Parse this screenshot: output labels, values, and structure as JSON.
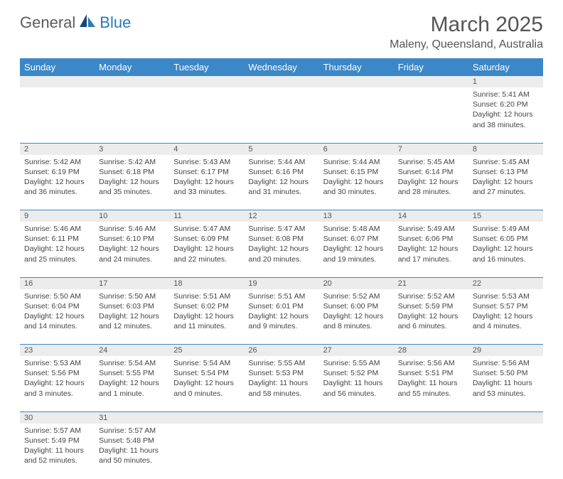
{
  "logo": {
    "part1": "General",
    "part2": "Blue"
  },
  "title": "March 2025",
  "location": "Maleny, Queensland, Australia",
  "colors": {
    "header_bg": "#3b87c8",
    "header_text": "#ffffff",
    "daynum_bg": "#ececec",
    "row_border": "#3b87c8",
    "text": "#444444",
    "title_text": "#555555",
    "logo_gray": "#5a5a5a",
    "logo_blue": "#2a7ab8"
  },
  "weekdays": [
    "Sunday",
    "Monday",
    "Tuesday",
    "Wednesday",
    "Thursday",
    "Friday",
    "Saturday"
  ],
  "weeks": [
    [
      null,
      null,
      null,
      null,
      null,
      null,
      {
        "n": "1",
        "sr": "5:41 AM",
        "ss": "6:20 PM",
        "dl": "12 hours and 38 minutes."
      }
    ],
    [
      {
        "n": "2",
        "sr": "5:42 AM",
        "ss": "6:19 PM",
        "dl": "12 hours and 36 minutes."
      },
      {
        "n": "3",
        "sr": "5:42 AM",
        "ss": "6:18 PM",
        "dl": "12 hours and 35 minutes."
      },
      {
        "n": "4",
        "sr": "5:43 AM",
        "ss": "6:17 PM",
        "dl": "12 hours and 33 minutes."
      },
      {
        "n": "5",
        "sr": "5:44 AM",
        "ss": "6:16 PM",
        "dl": "12 hours and 31 minutes."
      },
      {
        "n": "6",
        "sr": "5:44 AM",
        "ss": "6:15 PM",
        "dl": "12 hours and 30 minutes."
      },
      {
        "n": "7",
        "sr": "5:45 AM",
        "ss": "6:14 PM",
        "dl": "12 hours and 28 minutes."
      },
      {
        "n": "8",
        "sr": "5:45 AM",
        "ss": "6:13 PM",
        "dl": "12 hours and 27 minutes."
      }
    ],
    [
      {
        "n": "9",
        "sr": "5:46 AM",
        "ss": "6:11 PM",
        "dl": "12 hours and 25 minutes."
      },
      {
        "n": "10",
        "sr": "5:46 AM",
        "ss": "6:10 PM",
        "dl": "12 hours and 24 minutes."
      },
      {
        "n": "11",
        "sr": "5:47 AM",
        "ss": "6:09 PM",
        "dl": "12 hours and 22 minutes."
      },
      {
        "n": "12",
        "sr": "5:47 AM",
        "ss": "6:08 PM",
        "dl": "12 hours and 20 minutes."
      },
      {
        "n": "13",
        "sr": "5:48 AM",
        "ss": "6:07 PM",
        "dl": "12 hours and 19 minutes."
      },
      {
        "n": "14",
        "sr": "5:49 AM",
        "ss": "6:06 PM",
        "dl": "12 hours and 17 minutes."
      },
      {
        "n": "15",
        "sr": "5:49 AM",
        "ss": "6:05 PM",
        "dl": "12 hours and 16 minutes."
      }
    ],
    [
      {
        "n": "16",
        "sr": "5:50 AM",
        "ss": "6:04 PM",
        "dl": "12 hours and 14 minutes."
      },
      {
        "n": "17",
        "sr": "5:50 AM",
        "ss": "6:03 PM",
        "dl": "12 hours and 12 minutes."
      },
      {
        "n": "18",
        "sr": "5:51 AM",
        "ss": "6:02 PM",
        "dl": "12 hours and 11 minutes."
      },
      {
        "n": "19",
        "sr": "5:51 AM",
        "ss": "6:01 PM",
        "dl": "12 hours and 9 minutes."
      },
      {
        "n": "20",
        "sr": "5:52 AM",
        "ss": "6:00 PM",
        "dl": "12 hours and 8 minutes."
      },
      {
        "n": "21",
        "sr": "5:52 AM",
        "ss": "5:59 PM",
        "dl": "12 hours and 6 minutes."
      },
      {
        "n": "22",
        "sr": "5:53 AM",
        "ss": "5:57 PM",
        "dl": "12 hours and 4 minutes."
      }
    ],
    [
      {
        "n": "23",
        "sr": "5:53 AM",
        "ss": "5:56 PM",
        "dl": "12 hours and 3 minutes."
      },
      {
        "n": "24",
        "sr": "5:54 AM",
        "ss": "5:55 PM",
        "dl": "12 hours and 1 minute."
      },
      {
        "n": "25",
        "sr": "5:54 AM",
        "ss": "5:54 PM",
        "dl": "12 hours and 0 minutes."
      },
      {
        "n": "26",
        "sr": "5:55 AM",
        "ss": "5:53 PM",
        "dl": "11 hours and 58 minutes."
      },
      {
        "n": "27",
        "sr": "5:55 AM",
        "ss": "5:52 PM",
        "dl": "11 hours and 56 minutes."
      },
      {
        "n": "28",
        "sr": "5:56 AM",
        "ss": "5:51 PM",
        "dl": "11 hours and 55 minutes."
      },
      {
        "n": "29",
        "sr": "5:56 AM",
        "ss": "5:50 PM",
        "dl": "11 hours and 53 minutes."
      }
    ],
    [
      {
        "n": "30",
        "sr": "5:57 AM",
        "ss": "5:49 PM",
        "dl": "11 hours and 52 minutes."
      },
      {
        "n": "31",
        "sr": "5:57 AM",
        "ss": "5:48 PM",
        "dl": "11 hours and 50 minutes."
      },
      null,
      null,
      null,
      null,
      null
    ]
  ],
  "labels": {
    "sunrise": "Sunrise:",
    "sunset": "Sunset:",
    "daylight": "Daylight:"
  }
}
